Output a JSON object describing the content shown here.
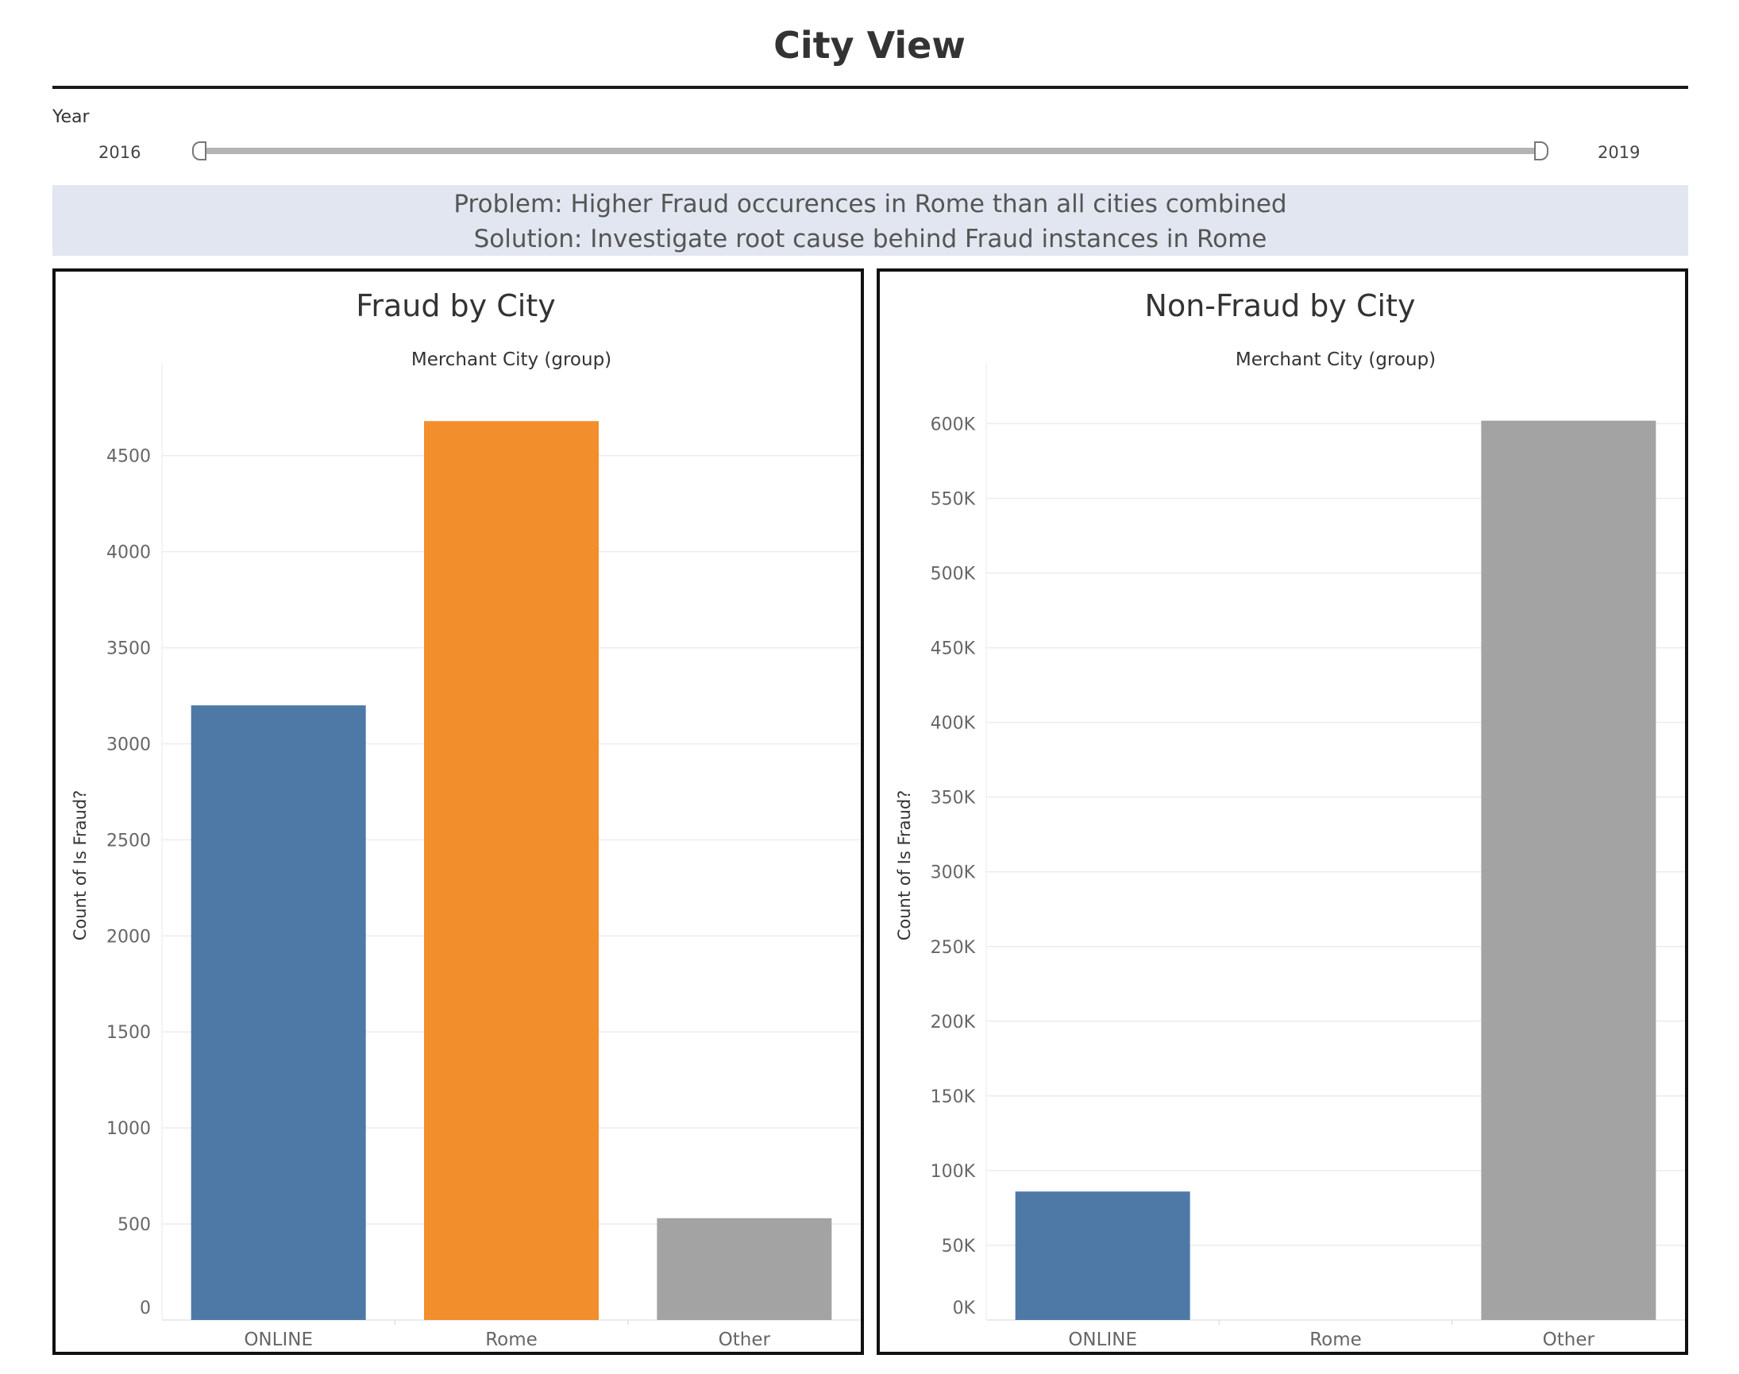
{
  "page": {
    "title": "City View"
  },
  "filter": {
    "label": "Year",
    "range_min": "2016",
    "range_max": "2019"
  },
  "banner": {
    "problem": "Problem: Higher Fraud occurences in Rome than all cities combined",
    "solution": "Solution: Investigate root cause behind Fraud instances in Rome"
  },
  "chart_data": [
    {
      "type": "bar",
      "title": "Fraud by City",
      "column_header": "Merchant City (group)",
      "ylabel": "Count of Is Fraud?",
      "xlabel": "",
      "categories": [
        "ONLINE",
        "Rome",
        "Other"
      ],
      "values": [
        3200,
        4680,
        530
      ],
      "colors": [
        "#4e79a7",
        "#f28e2b",
        "#a3a3a3"
      ],
      "ylim": [
        0,
        4900
      ],
      "ticks": [
        0,
        500,
        1000,
        1500,
        2000,
        2500,
        3000,
        3500,
        4000,
        4500
      ],
      "tick_labels": [
        "0",
        "500",
        "1000",
        "1500",
        "2000",
        "2500",
        "3000",
        "3500",
        "4000",
        "4500"
      ],
      "grid": true
    },
    {
      "type": "bar",
      "title": "Non-Fraud by City",
      "column_header": "Merchant City (group)",
      "ylabel": "Count of Is Fraud?",
      "xlabel": "",
      "categories": [
        "ONLINE",
        "Rome",
        "Other"
      ],
      "values": [
        86000,
        0,
        602000
      ],
      "colors": [
        "#4e79a7",
        "#f28e2b",
        "#a3a3a3"
      ],
      "ylim": [
        0,
        630000
      ],
      "ticks": [
        0,
        50000,
        100000,
        150000,
        200000,
        250000,
        300000,
        350000,
        400000,
        450000,
        500000,
        550000,
        600000
      ],
      "tick_labels": [
        "0K",
        "50K",
        "100K",
        "150K",
        "200K",
        "250K",
        "300K",
        "350K",
        "400K",
        "450K",
        "500K",
        "550K",
        "600K"
      ],
      "grid": true
    }
  ]
}
